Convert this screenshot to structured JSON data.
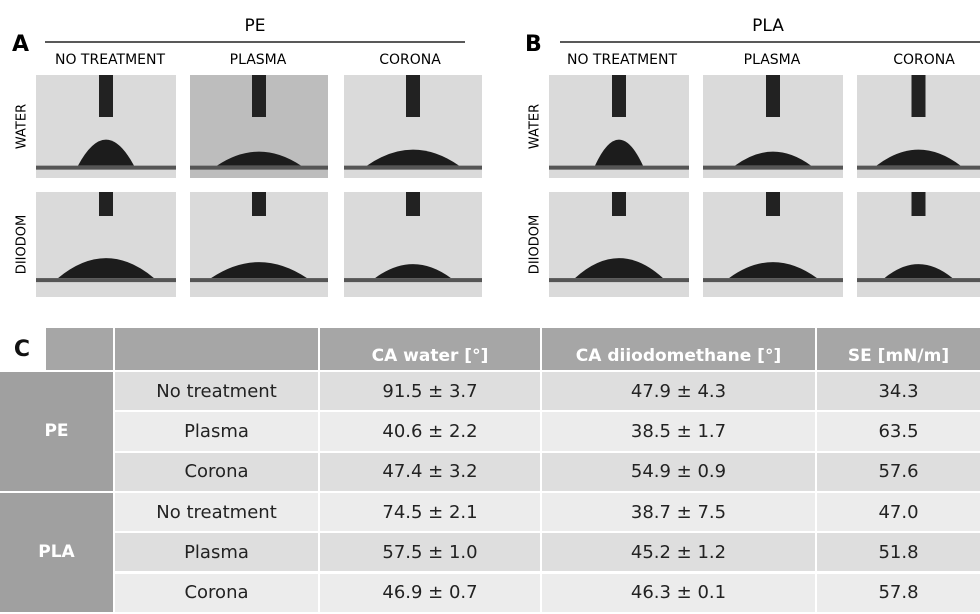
{
  "panel_a": {
    "label": "A",
    "title": "PE",
    "columns": [
      "NO TREATMENT",
      "PLASMA",
      "CORONA"
    ],
    "rows": [
      "WATER",
      "DIIODOM"
    ]
  },
  "panel_b": {
    "label": "B",
    "title": "PLA",
    "columns": [
      "NO TREATMENT",
      "PLASMA",
      "CORONA"
    ],
    "rows": [
      "WATER",
      "DIIODOM"
    ]
  },
  "panel_c": {
    "label": "C",
    "header": [
      "CA water [°]",
      "CA diiodomethane [°]",
      "SE [mN/m]"
    ],
    "groups": [
      {
        "name": "PE",
        "rows": [
          [
            "No treatment",
            "91.5 ± 3.7",
            "47.9 ± 4.3",
            "34.3"
          ],
          [
            "Plasma",
            "40.6 ± 2.2",
            "38.5 ± 1.7",
            "63.5"
          ],
          [
            "Corona",
            "47.4 ± 3.2",
            "54.9 ± 0.9",
            "57.6"
          ]
        ]
      },
      {
        "name": "PLA",
        "rows": [
          [
            "No treatment",
            "74.5 ± 2.1",
            "38.7 ± 7.5",
            "47.0"
          ],
          [
            "Plasma",
            "57.5 ± 1.0",
            "45.2 ± 1.2",
            "51.8"
          ],
          [
            "Corona",
            "46.9 ± 0.7",
            "46.3 ± 0.1",
            "57.8"
          ]
        ]
      }
    ]
  }
}
